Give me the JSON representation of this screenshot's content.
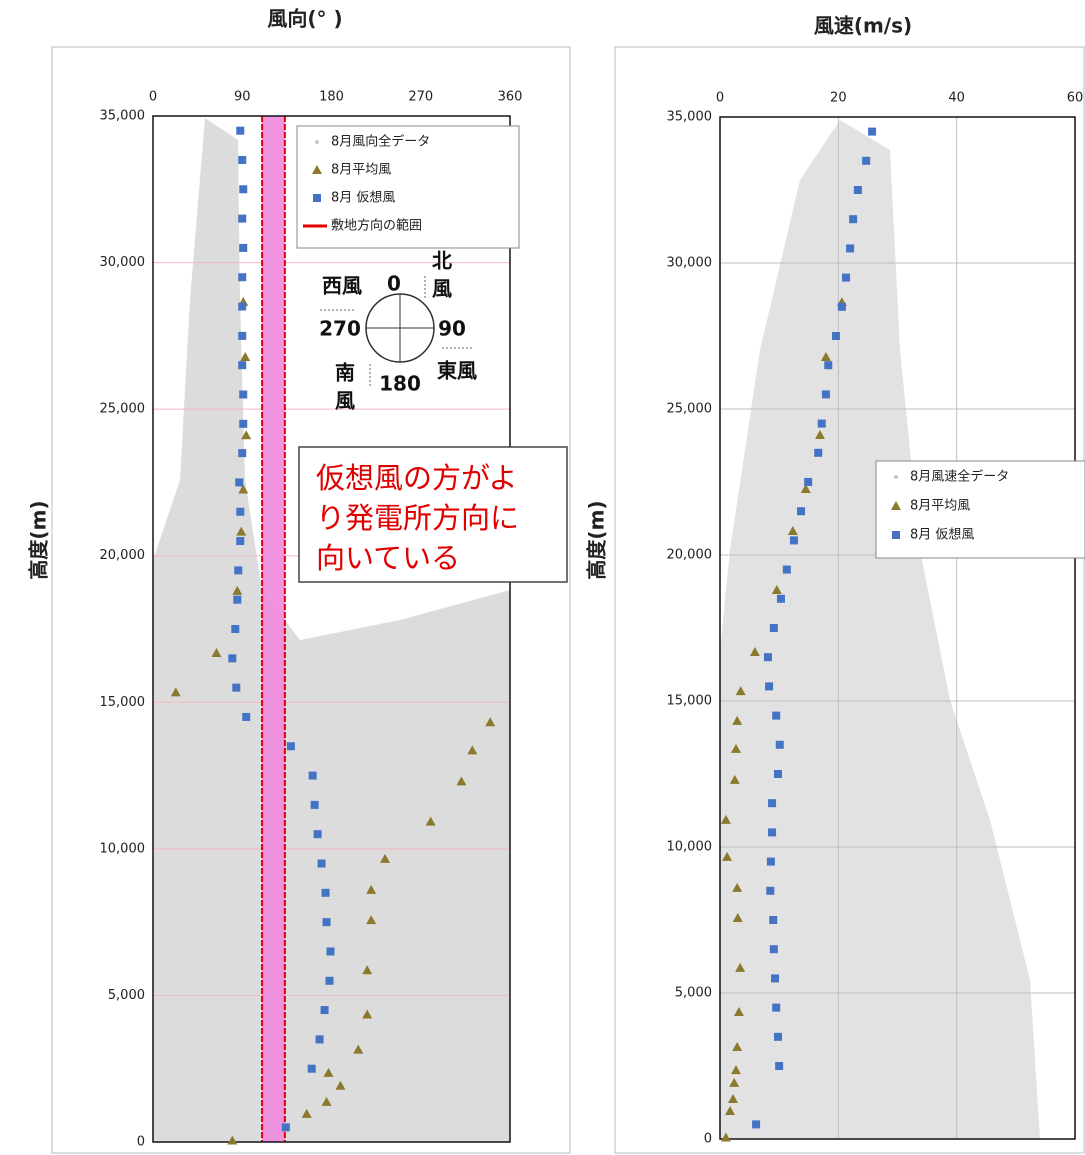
{
  "chart_data": [
    {
      "type": "scatter",
      "title": "風向(° )",
      "y_label": "高度(m)",
      "xlim": [
        0,
        360
      ],
      "xticks": [
        0,
        90,
        180,
        270,
        360
      ],
      "ylim": [
        0,
        35000
      ],
      "yticks": [
        0,
        {
          "value": 5000,
          "label": "5,000"
        },
        {
          "value": 10000,
          "label": "10,000"
        },
        {
          "value": 15000,
          "label": "15,000"
        },
        {
          "value": 20000,
          "label": "20,000"
        },
        {
          "value": 25000,
          "label": "25,000"
        },
        {
          "value": 30000,
          "label": "30,000"
        },
        {
          "value": 35000,
          "label": "35,000"
        }
      ],
      "grid": {
        "x": false,
        "y": true,
        "color": "#f2b8c0"
      },
      "series": [
        {
          "name": "8月風向全データ",
          "color": "#c8c8c8",
          "marker": "dot"
        },
        {
          "name": "8月平均風",
          "color": "#8b7a2e",
          "marker": "triangle",
          "x": [
            80,
            155,
            175,
            189,
            177,
            207,
            216,
            216,
            220,
            220,
            234,
            280,
            311,
            322,
            340,
            23,
            64,
            85,
            89,
            91,
            94,
            93,
            91
          ],
          "y": [
            50,
            960,
            1370,
            1920,
            2360,
            3150,
            4350,
            5860,
            7570,
            8600,
            9660,
            10930,
            12300,
            13360,
            14320,
            15340,
            16680,
            18800,
            20820,
            22260,
            24110,
            26780,
            28660
          ]
        },
        {
          "name": "8月 仮想風",
          "color": "#4472c4",
          "marker": "square",
          "x": [
            134,
            160,
            168,
            173,
            178,
            179,
            175,
            174,
            170,
            166,
            163,
            161,
            139,
            94,
            84,
            80,
            83,
            85,
            86,
            88,
            88,
            87,
            90,
            91,
            91,
            90,
            90,
            90,
            90,
            91,
            90,
            91,
            90,
            88
          ],
          "y": [
            500,
            2500,
            3500,
            4500,
            5500,
            6500,
            7500,
            8500,
            9500,
            10500,
            11500,
            12500,
            13500,
            14500,
            15500,
            16500,
            17500,
            18500,
            19500,
            20500,
            21500,
            22500,
            23500,
            24500,
            25500,
            26500,
            27500,
            28500,
            29500,
            30500,
            31500,
            32500,
            33500,
            34500
          ]
        }
      ],
      "range": {
        "name": "敷地方向の範囲",
        "color": "#e00000",
        "fill": "#f08ae0",
        "x": [
          110,
          133
        ]
      },
      "annotation": [
        "仮想風の方がよ",
        "り発電所方向に",
        "向いている"
      ],
      "compass": {
        "north": "0",
        "east": "90",
        "south": "180",
        "west": "270",
        "north_wind": [
          "北",
          "風"
        ],
        "east_wind": "東風",
        "south_wind": [
          "南",
          "風"
        ],
        "west_wind": "西風"
      }
    },
    {
      "type": "scatter",
      "title": "風速(m/s)",
      "y_label": "高度(m)",
      "xlim": [
        0,
        60
      ],
      "xticks": [
        0,
        20,
        40,
        60
      ],
      "ylim": [
        0,
        35000
      ],
      "yticks": [
        0,
        {
          "value": 5000,
          "label": "5,000"
        },
        {
          "value": 10000,
          "label": "10,000"
        },
        {
          "value": 15000,
          "label": "15,000"
        },
        {
          "value": 20000,
          "label": "20,000"
        },
        {
          "value": 25000,
          "label": "25,000"
        },
        {
          "value": 30000,
          "label": "30,000"
        },
        {
          "value": 35000,
          "label": "35,000"
        }
      ],
      "grid": {
        "x": true,
        "y": true,
        "color": "#bfbfbf"
      },
      "series": [
        {
          "name": "8月風速全データ",
          "color": "#c8c8c8",
          "marker": "dot"
        },
        {
          "name": "8月平均風",
          "color": "#8b7a2e",
          "marker": "triangle",
          "x": [
            1.0,
            1.7,
            2.2,
            2.4,
            2.7,
            2.9,
            3.2,
            3.4,
            3.0,
            2.9,
            1.2,
            1.0,
            2.5,
            2.7,
            2.9,
            3.5,
            5.9,
            9.6,
            12.3,
            14.5,
            16.9,
            17.9,
            20.6
          ],
          "y": [
            50,
            960,
            1370,
            1920,
            2360,
            3150,
            4350,
            5860,
            7570,
            8600,
            9660,
            10930,
            12300,
            13360,
            14320,
            15340,
            16680,
            18800,
            20820,
            22260,
            24110,
            26780,
            28660
          ]
        },
        {
          "name": "8月 仮想風",
          "color": "#4472c4",
          "marker": "square",
          "x": [
            6.1,
            10.0,
            9.8,
            9.5,
            9.3,
            9.1,
            9.0,
            8.5,
            8.6,
            8.8,
            8.8,
            9.8,
            10.1,
            9.5,
            8.3,
            8.1,
            9.1,
            10.3,
            11.3,
            12.5,
            13.7,
            14.9,
            16.6,
            17.2,
            17.9,
            18.3,
            19.6,
            20.6,
            21.3,
            22.0,
            22.5,
            23.3,
            24.7,
            25.7
          ],
          "y": [
            500,
            2500,
            3500,
            4500,
            5500,
            6500,
            7500,
            8500,
            9500,
            10500,
            11500,
            12500,
            13500,
            14500,
            15500,
            16500,
            17500,
            18500,
            19500,
            20500,
            21500,
            22500,
            23500,
            24500,
            25500,
            26500,
            27500,
            28500,
            29500,
            30500,
            31500,
            32500,
            33500,
            34500
          ]
        }
      ]
    }
  ]
}
